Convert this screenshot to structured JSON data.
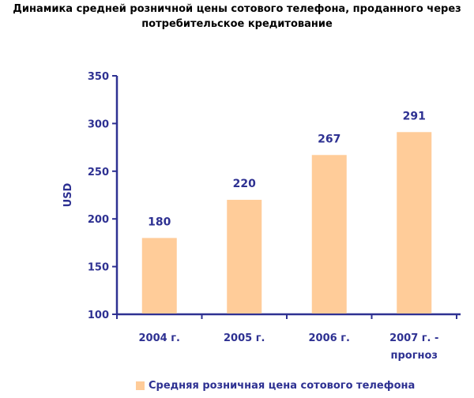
{
  "chart_data": {
    "type": "bar",
    "title": "Динамика средней розничной цены сотового телефона, проданного через потребительское кредитование",
    "categories": [
      [
        "2004 г."
      ],
      [
        "2005 г."
      ],
      [
        "2006 г."
      ],
      [
        "2007 г. -",
        "прогноз"
      ]
    ],
    "values": [
      180,
      220,
      267,
      291
    ],
    "data_labels": [
      "180",
      "220",
      "267",
      "291"
    ],
    "ylabel": "USD",
    "xlabel": "",
    "ylim": [
      100,
      350
    ],
    "yticks": [
      100,
      150,
      200,
      250,
      300,
      350
    ],
    "ytick_labels": [
      "100",
      "150",
      "200",
      "250",
      "300",
      "350"
    ],
    "grid": false,
    "legend": {
      "position": "bottom",
      "entries": [
        "Средняя розничная цена сотового телефона"
      ]
    },
    "colors": {
      "bar": "#ffcc99",
      "axis": "#2e3192",
      "text": "#2e3192"
    }
  }
}
